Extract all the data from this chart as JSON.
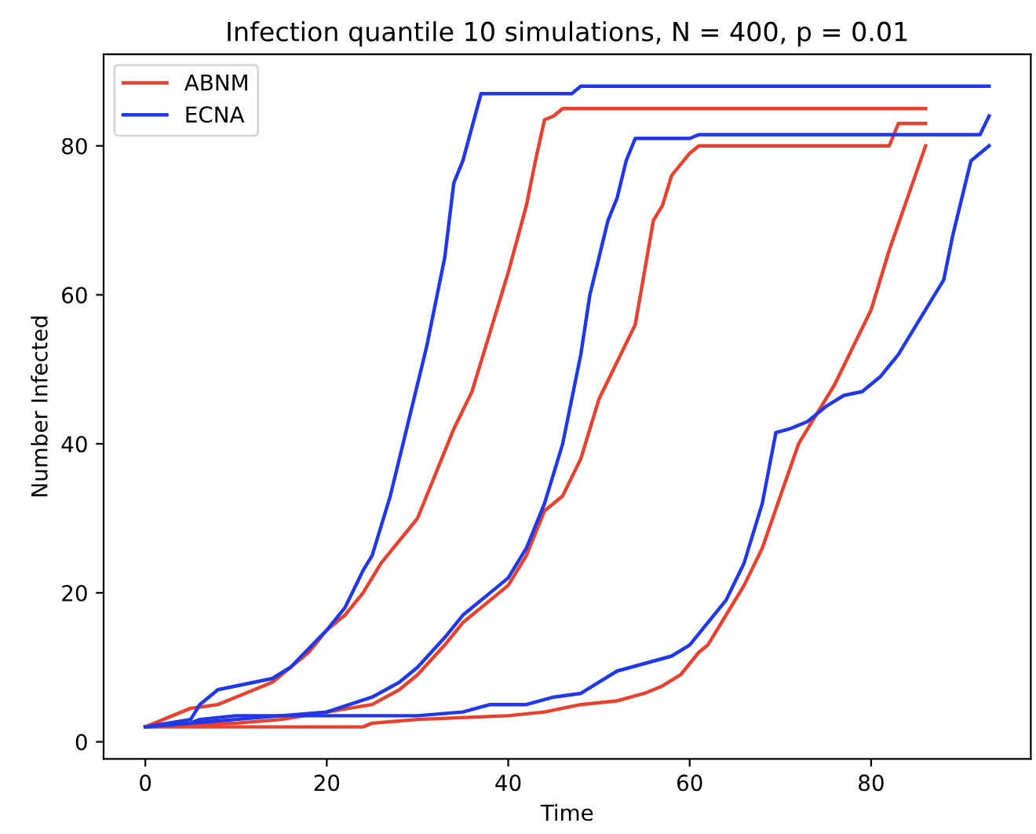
{
  "chart_data": {
    "type": "line",
    "title": "Infection quantile 10 simulations, N = 400, p = 0.01",
    "xlabel": "Time",
    "ylabel": "Number Infected",
    "xlim": [
      -4.6,
      97.6
    ],
    "ylim": [
      -2.3,
      92.3
    ],
    "xticks": [
      0,
      20,
      40,
      60,
      80
    ],
    "yticks": [
      0,
      20,
      40,
      60,
      80
    ],
    "grid": false,
    "legend": "top left",
    "marker": "none",
    "line_style": "solid",
    "series": [
      {
        "name": "ABNM",
        "color": "#e8412f",
        "x": [
          0,
          5,
          8,
          10,
          14,
          16,
          18,
          20,
          22,
          24,
          26,
          28,
          30,
          32,
          34,
          36,
          38,
          40,
          42,
          43,
          44,
          45,
          46,
          86
        ],
        "values": [
          2,
          4.5,
          5,
          6,
          8,
          10,
          12,
          15,
          17,
          20,
          24,
          27,
          30,
          36,
          42,
          47,
          55,
          63,
          72,
          78,
          83.5,
          84,
          85,
          85
        ]
      },
      {
        "name": "ECNA",
        "color": "#2038e8",
        "x": [
          0,
          5,
          6,
          8,
          10,
          14,
          16,
          20,
          22,
          24,
          25,
          27,
          29,
          31,
          33,
          34,
          35,
          37,
          47,
          48,
          93
        ],
        "values": [
          2,
          3,
          5,
          7,
          7.5,
          8.5,
          10,
          15,
          18,
          23,
          25,
          33,
          43,
          53,
          65,
          75,
          78,
          87,
          87,
          88,
          88
        ]
      },
      {
        "color": "#e8412f",
        "x": [
          0,
          10,
          15,
          20,
          25,
          28,
          30,
          33,
          35,
          38,
          40,
          42,
          44,
          46,
          48,
          50,
          52,
          54,
          55,
          56,
          57,
          58,
          60,
          61,
          82,
          83,
          86
        ],
        "values": [
          2,
          2.5,
          3,
          4,
          5,
          7,
          9,
          13,
          16,
          19,
          21,
          25,
          31,
          33,
          38,
          46,
          51,
          56,
          63,
          70,
          72,
          76,
          79,
          80,
          80,
          83,
          83
        ]
      },
      {
        "color": "#2038e8",
        "x": [
          0,
          5,
          10,
          15,
          20,
          25,
          28,
          30,
          33,
          35,
          38,
          40,
          42,
          44,
          46,
          48,
          49,
          50,
          51,
          52,
          53,
          54,
          60,
          61,
          92,
          93
        ],
        "values": [
          2,
          2.5,
          3,
          3.5,
          4,
          6,
          8,
          10,
          14,
          17,
          20,
          22,
          26,
          32,
          40,
          52,
          60,
          65,
          70,
          73,
          78,
          81,
          81,
          81.5,
          81.5,
          84
        ]
      },
      {
        "color": "#e8412f",
        "x": [
          0,
          24,
          25,
          30,
          40,
          44,
          48,
          52,
          55,
          57,
          59,
          61,
          62,
          64,
          66,
          68,
          70,
          72,
          74,
          76,
          78,
          80,
          82,
          84,
          86
        ],
        "values": [
          2,
          2,
          2.5,
          3,
          3.5,
          4,
          5,
          5.5,
          6.5,
          7.5,
          9,
          12,
          13,
          17,
          21,
          26,
          33,
          40,
          44,
          48,
          53,
          58,
          66,
          73,
          80
        ]
      },
      {
        "color": "#2038e8",
        "x": [
          0,
          5,
          6,
          10,
          30,
          35,
          38,
          42,
          45,
          48,
          50,
          52,
          55,
          58,
          60,
          62,
          64,
          66,
          68,
          69.5,
          71,
          73,
          75,
          77,
          79,
          81,
          83,
          85,
          87,
          88,
          89,
          90,
          91,
          92,
          93
        ],
        "values": [
          2,
          2.5,
          3,
          3.5,
          3.5,
          4,
          5,
          5,
          6,
          6.5,
          8,
          9.5,
          10.5,
          11.5,
          13,
          16,
          19,
          24,
          32,
          41.5,
          42,
          43,
          45,
          46.5,
          47,
          49,
          52,
          56,
          60,
          62,
          68,
          73,
          78,
          79,
          80
        ]
      }
    ]
  }
}
